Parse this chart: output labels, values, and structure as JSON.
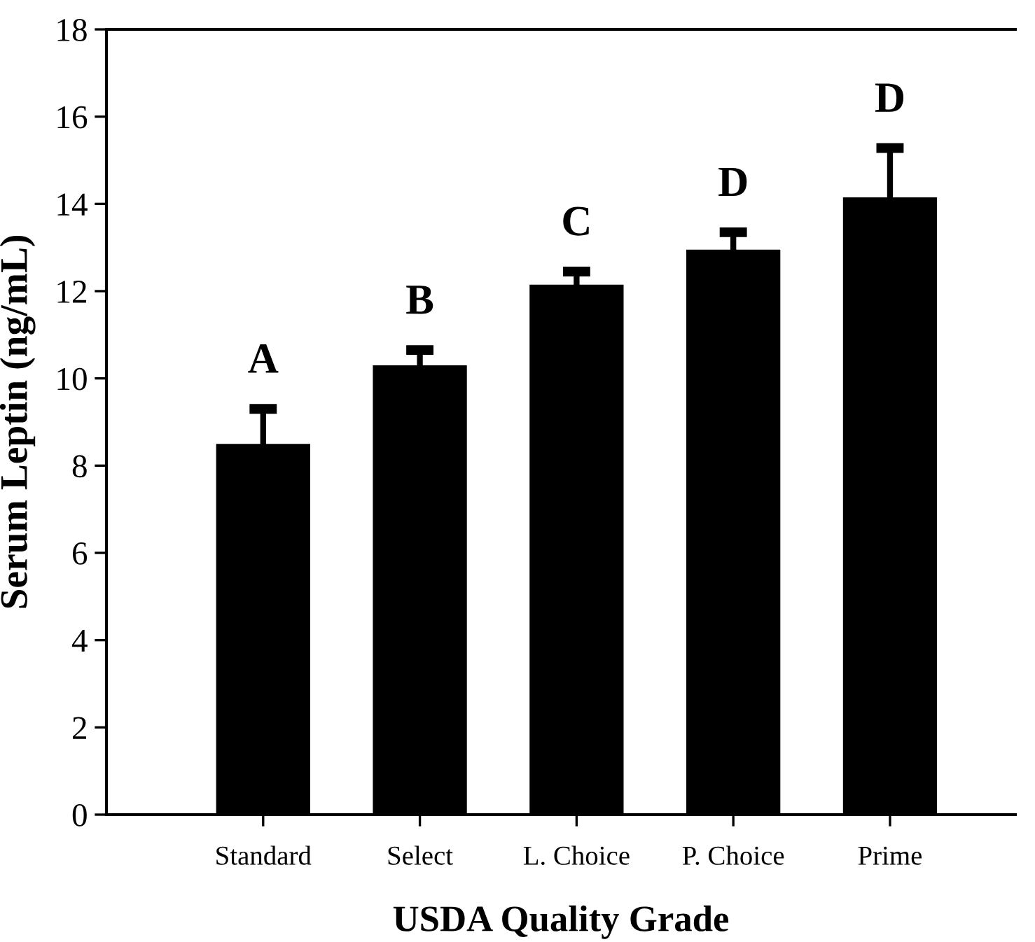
{
  "chart_data": {
    "type": "bar",
    "xlabel": "USDA Quality Grade",
    "ylabel": "Serum Leptin (ng/mL)",
    "categories": [
      "Standard",
      "Select",
      "L. Choice",
      "P. Choice",
      "Prime"
    ],
    "values": [
      8.5,
      10.3,
      12.15,
      12.95,
      14.15
    ],
    "errors": [
      0.8,
      0.35,
      0.3,
      0.4,
      1.13
    ],
    "color": "#000000",
    "ylim": [
      0,
      18
    ],
    "yticks": [
      0,
      2,
      4,
      6,
      8,
      10,
      12,
      14,
      16,
      18
    ],
    "grid": false,
    "legend": false,
    "annotations": [
      {
        "text": "A",
        "x": "Standard",
        "y": 9.3
      },
      {
        "text": "B",
        "x": "Select",
        "y": 10.65
      },
      {
        "text": "C",
        "x": "L. Choice",
        "y": 12.45
      },
      {
        "text": "D",
        "x": "P. Choice",
        "y": 13.35
      },
      {
        "text": "D",
        "x": "Prime",
        "y": 15.28
      }
    ]
  }
}
